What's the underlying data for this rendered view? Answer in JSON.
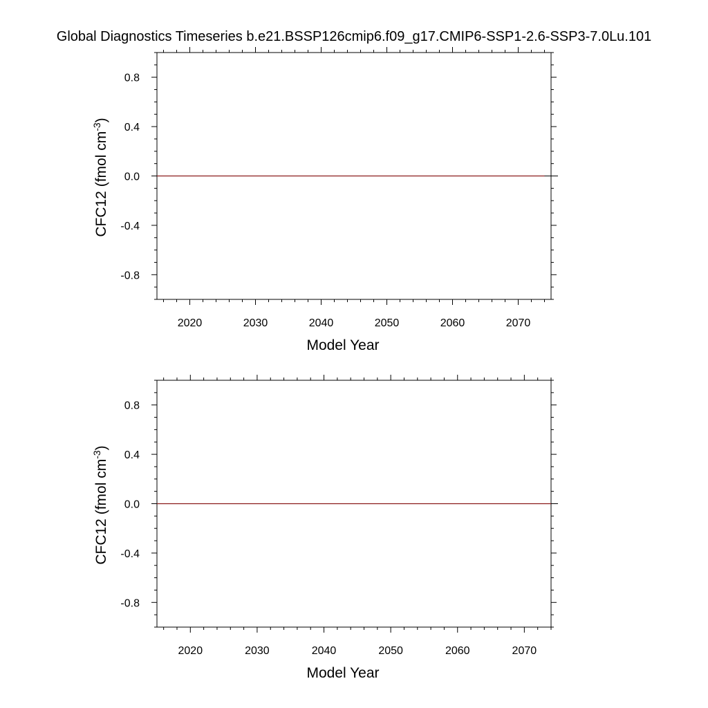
{
  "title": "Global Diagnostics Timeseries b.e21.BSSP126cmip6.f09_g17.CMIP6-SSP1-2.6-SSP3-7.0Lu.101",
  "colors": {
    "series": "#8b1a1a",
    "axis": "#000000",
    "zero_line": "#000000"
  },
  "chart_data": [
    {
      "type": "line",
      "xlabel": "Model Year",
      "ylabel_main": "CFC12 (fmol cm",
      "ylabel_sup": "-3",
      "ylabel_close": ")",
      "xlim": [
        2015,
        2075
      ],
      "ylim": [
        -1.0,
        1.0
      ],
      "xticks": [
        2020,
        2030,
        2040,
        2050,
        2060,
        2070
      ],
      "xtick_labels": [
        "2020",
        "2030",
        "2040",
        "2050",
        "2060",
        "2070"
      ],
      "yticks": [
        0.8,
        0.4,
        0.0,
        -0.4,
        -0.8
      ],
      "ytick_labels": [
        "0.8",
        "0.4",
        "0.0",
        "-0.4",
        "-0.8"
      ],
      "zero_line": true,
      "grid": false,
      "series": [
        {
          "x": [
            2015,
            2074
          ],
          "y": [
            0.0,
            0.0
          ]
        }
      ]
    },
    {
      "type": "line",
      "xlabel": "Model Year",
      "ylabel_main": "CFC12 (fmol cm",
      "ylabel_sup": "-3",
      "ylabel_close": ")",
      "xlim": [
        2015,
        2074
      ],
      "ylim": [
        -1.0,
        1.0
      ],
      "xticks": [
        2020,
        2030,
        2040,
        2050,
        2060,
        2070
      ],
      "xtick_labels": [
        "2020",
        "2030",
        "2040",
        "2050",
        "2060",
        "2070"
      ],
      "yticks": [
        0.8,
        0.4,
        0.0,
        -0.4,
        -0.8
      ],
      "ytick_labels": [
        "0.8",
        "0.4",
        "0.0",
        "-0.4",
        "-0.8"
      ],
      "zero_line": true,
      "grid": false,
      "series": [
        {
          "x": [
            2015,
            2074
          ],
          "y": [
            0.0,
            0.0
          ]
        }
      ]
    }
  ]
}
